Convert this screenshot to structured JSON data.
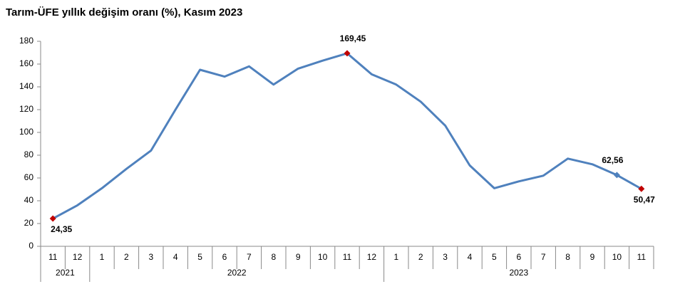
{
  "chart_data": {
    "type": "line",
    "title": "Tarım-ÜFE yıllık değişim oranı (%), Kasım 2023",
    "categories": [
      "11",
      "12",
      "1",
      "2",
      "3",
      "4",
      "5",
      "6",
      "7",
      "8",
      "9",
      "10",
      "11",
      "12",
      "1",
      "2",
      "3",
      "4",
      "5",
      "6",
      "7",
      "8",
      "9",
      "10",
      "11"
    ],
    "year_groups": [
      {
        "label": "2021",
        "span": 2
      },
      {
        "label": "2022",
        "span": 12
      },
      {
        "label": "2023",
        "span": 11
      }
    ],
    "series": [
      {
        "name": "Tarım-ÜFE",
        "color": "#4f81bd",
        "values": [
          24.35,
          36,
          51,
          68,
          84,
          120,
          155,
          149,
          158,
          142,
          156,
          163,
          169.45,
          151,
          142,
          127,
          106,
          71,
          51,
          57,
          62,
          77,
          72,
          62.56,
          50.47
        ],
        "value_labels": [
          "24,35",
          null,
          null,
          null,
          null,
          null,
          null,
          null,
          null,
          null,
          null,
          null,
          "169,45",
          null,
          null,
          null,
          null,
          null,
          null,
          null,
          null,
          null,
          null,
          "62,56",
          "50,47"
        ],
        "marker_colors": [
          "#c00000",
          null,
          null,
          null,
          null,
          null,
          null,
          null,
          null,
          null,
          null,
          null,
          "#c00000",
          null,
          null,
          null,
          null,
          null,
          null,
          null,
          null,
          null,
          null,
          "#4f81bd",
          "#c00000"
        ]
      }
    ],
    "ylim": [
      0,
      180
    ],
    "yticks": [
      0,
      20,
      40,
      60,
      80,
      100,
      120,
      140,
      160,
      180
    ]
  }
}
